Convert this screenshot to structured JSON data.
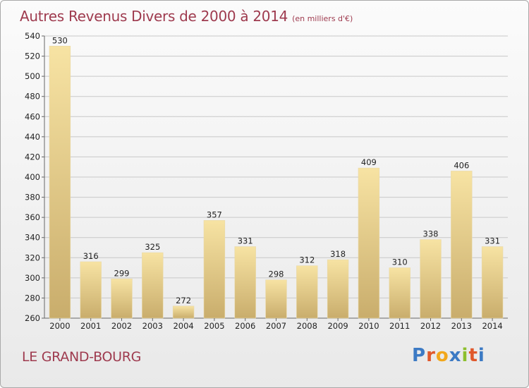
{
  "title": "Autres Revenus Divers de 2000 à 2014",
  "subtitle": "(en milliers d'€)",
  "location": "LE GRAND-BOURG",
  "logo": {
    "letters": [
      "P",
      "r",
      "o",
      "x",
      "i",
      "t",
      "i"
    ],
    "colors": [
      "#3c7ac4",
      "#e0582b",
      "#f2a71b",
      "#3c7ac4",
      "#8dbf2e",
      "#e0582b",
      "#3c7ac4"
    ]
  },
  "colors": {
    "title": "#9e3a4e",
    "bar_light": "#f7e3a3",
    "bar_dark": "#c9ad6c",
    "grid": "#c8c8c8"
  },
  "chart_data": {
    "type": "bar",
    "title": "Autres Revenus Divers de 2000 à 2014",
    "categories": [
      "2000",
      "2001",
      "2002",
      "2003",
      "2004",
      "2005",
      "2006",
      "2007",
      "2008",
      "2009",
      "2010",
      "2011",
      "2012",
      "2013",
      "2014"
    ],
    "values": [
      530,
      316,
      299,
      325,
      272,
      357,
      331,
      298,
      312,
      318,
      409,
      310,
      338,
      406,
      331
    ],
    "ylim": [
      260,
      540
    ],
    "yticks": [
      260,
      280,
      300,
      320,
      340,
      360,
      380,
      400,
      420,
      440,
      460,
      480,
      500,
      520,
      540
    ],
    "xlabel": "",
    "ylabel": "",
    "grid": true
  }
}
